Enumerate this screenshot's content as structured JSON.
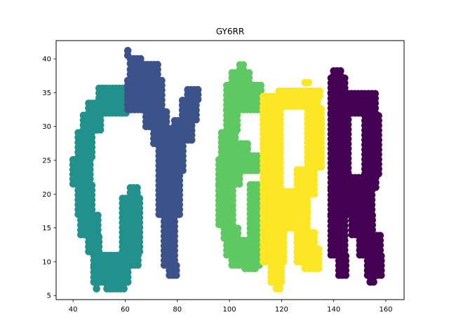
{
  "chart_data": {
    "type": "scatter",
    "title": "GY6RR",
    "xlabel": "",
    "ylabel": "",
    "xlim": [
      33.5,
      167
    ],
    "ylim": [
      4.4,
      42.7
    ],
    "xticks": [
      40,
      60,
      80,
      100,
      120,
      140,
      160
    ],
    "yticks": [
      5,
      10,
      15,
      20,
      25,
      30,
      35,
      40
    ],
    "grid": false,
    "legend": "none",
    "step": 1.3,
    "series": [
      {
        "letter": "G",
        "color": "#21918c",
        "rects": [
          [
            50,
            61,
            33.5,
            35.8
          ],
          [
            46,
            61,
            32,
            33.5
          ],
          [
            44,
            51,
            29.5,
            32
          ],
          [
            42,
            48,
            25.5,
            29.5
          ],
          [
            40,
            47,
            21.5,
            25.5
          ],
          [
            42,
            48,
            17,
            21.5
          ],
          [
            43,
            50,
            14,
            17
          ],
          [
            46,
            51,
            11.5,
            14
          ],
          [
            48,
            66,
            9.5,
            11.5
          ],
          [
            48,
            62,
            7,
            9.5
          ],
          [
            53,
            60,
            6,
            7
          ],
          [
            49,
            50,
            6,
            7
          ],
          [
            59,
            66,
            11.5,
            19.5
          ],
          [
            62,
            65,
            19.5,
            21
          ]
        ]
      },
      {
        "letter": "Y",
        "color": "#3b528b",
        "rects": [
          [
            61,
            62,
            40.5,
            41.3
          ],
          [
            62,
            67,
            39.3,
            40.3
          ],
          [
            62,
            73,
            37,
            39.3
          ],
          [
            61,
            75,
            32.5,
            37
          ],
          [
            68,
            77,
            30,
            32.5
          ],
          [
            71,
            80,
            27.5,
            30
          ],
          [
            73,
            83,
            23.5,
            27.5
          ],
          [
            73,
            81,
            17,
            23.5
          ],
          [
            75,
            80,
            9.5,
            17
          ],
          [
            77,
            80,
            8,
            9.5
          ],
          [
            84,
            89,
            34,
            36
          ],
          [
            82,
            88,
            31,
            34
          ],
          [
            79,
            86,
            28,
            31
          ]
        ]
      },
      {
        "letter": "6",
        "color": "#5ec962",
        "rects": [
          [
            104,
            106,
            38.4,
            39.3
          ],
          [
            101,
            108,
            36.5,
            38.3
          ],
          [
            99,
            112,
            32.5,
            36.5
          ],
          [
            99,
            103,
            29.5,
            32.5
          ],
          [
            97,
            103,
            25.5,
            29.5
          ],
          [
            103,
            107,
            26,
            27.5
          ],
          [
            103,
            112,
            23.5,
            26
          ],
          [
            96,
            104,
            21.5,
            25.5
          ],
          [
            96,
            102,
            15.5,
            21.5
          ],
          [
            98,
            104,
            13.5,
            15.5
          ],
          [
            99,
            112,
            11,
            13.5
          ],
          [
            101,
            112,
            9.5,
            11
          ],
          [
            106,
            110,
            9,
            9.5
          ],
          [
            108,
            112,
            13.5,
            21.5
          ]
        ]
      },
      {
        "letter": "R1",
        "color": "#fde725",
        "rects": [
          [
            113,
            134,
            33,
            35
          ],
          [
            119,
            135,
            34.5,
            35.5
          ],
          [
            129,
            131,
            36.5,
            37.2
          ],
          [
            113,
            120,
            21,
            33
          ],
          [
            130,
            136,
            24,
            33
          ],
          [
            126,
            133,
            20,
            24
          ],
          [
            113,
            130,
            17.5,
            21
          ],
          [
            113,
            121,
            10,
            17.5
          ],
          [
            116,
            121,
            7,
            10
          ],
          [
            118,
            120,
            6,
            7
          ],
          [
            122,
            130,
            15,
            17.5
          ],
          [
            126,
            133,
            10,
            15
          ],
          [
            129,
            135,
            9,
            12
          ]
        ]
      },
      {
        "letter": "R2",
        "color": "#440154",
        "rects": [
          [
            140,
            143,
            37.5,
            38.5
          ],
          [
            139,
            145,
            35,
            37.5
          ],
          [
            139,
            156,
            32,
            35
          ],
          [
            139,
            146,
            21,
            32
          ],
          [
            152,
            158,
            23,
            32
          ],
          [
            147,
            157,
            21,
            23
          ],
          [
            139,
            155,
            17,
            21
          ],
          [
            139,
            145,
            11,
            17
          ],
          [
            142,
            145,
            8,
            11
          ],
          [
            147,
            155,
            14,
            17
          ],
          [
            150,
            158,
            11,
            14
          ],
          [
            153,
            159,
            8,
            11
          ],
          [
            154,
            156,
            7,
            8
          ]
        ]
      }
    ]
  }
}
